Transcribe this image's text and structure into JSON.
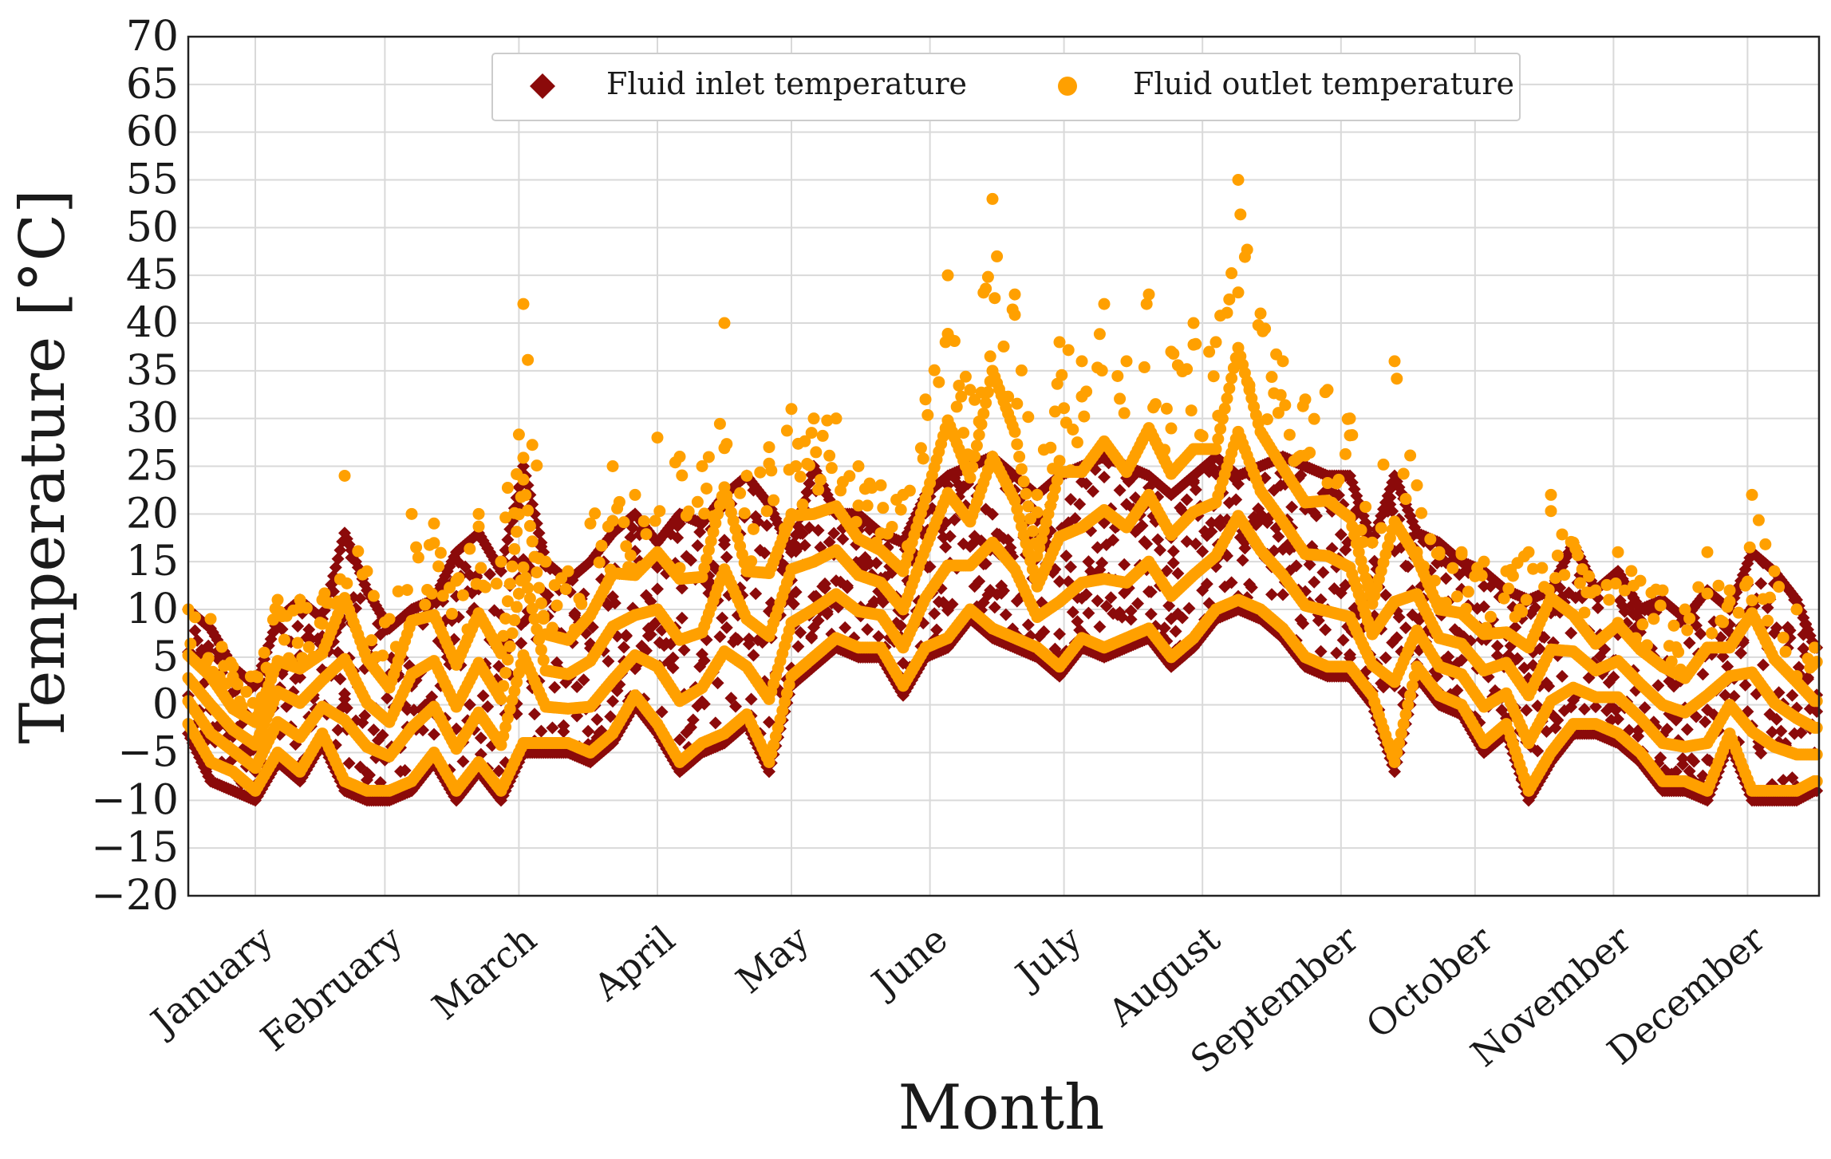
{
  "chart_data": {
    "type": "scatter",
    "title": "",
    "xlabel": "Month",
    "ylabel": "Temperature [°C]",
    "ylim": [
      -20,
      70
    ],
    "yticks": [
      -20,
      -15,
      -10,
      -5,
      0,
      5,
      10,
      15,
      20,
      25,
      30,
      35,
      40,
      45,
      50,
      55,
      60,
      65,
      70
    ],
    "xlim": [
      0,
      365
    ],
    "xunit": "day of year",
    "categories": [
      "January",
      "February",
      "March",
      "April",
      "May",
      "June",
      "July",
      "August",
      "September",
      "October",
      "November",
      "December"
    ],
    "category_positions": [
      15,
      44,
      74,
      105,
      135,
      166,
      196,
      227,
      258,
      288,
      319,
      349
    ],
    "grid": true,
    "legend": {
      "placement": "upper-center",
      "entries": [
        "Fluid inlet temperature",
        "Fluid outlet temperature"
      ]
    },
    "colors": {
      "inlet": "#8b0a0a",
      "outlet": "#ffa000",
      "grid": "#d9d9d9"
    },
    "series": [
      {
        "name": "Fluid inlet temperature",
        "marker": "diamond",
        "note": "daily envelope read from figure",
        "x": [
          0,
          5,
          10,
          15,
          20,
          25,
          30,
          35,
          40,
          45,
          50,
          55,
          60,
          65,
          70,
          75,
          80,
          85,
          90,
          95,
          100,
          105,
          110,
          115,
          120,
          125,
          130,
          135,
          140,
          145,
          150,
          155,
          160,
          165,
          170,
          175,
          180,
          185,
          190,
          195,
          200,
          205,
          210,
          215,
          220,
          225,
          230,
          235,
          240,
          245,
          250,
          255,
          260,
          265,
          270,
          275,
          280,
          285,
          290,
          295,
          300,
          305,
          310,
          315,
          320,
          325,
          330,
          335,
          340,
          345,
          350,
          355,
          360,
          364
        ],
        "min": [
          -3,
          -8,
          -9,
          -10,
          -6,
          -8,
          -4,
          -9,
          -10,
          -10,
          -9,
          -6,
          -10,
          -7,
          -10,
          -5,
          -5,
          -5,
          -6,
          -4,
          0,
          -3,
          -7,
          -5,
          -4,
          -2,
          -7,
          2,
          4,
          6,
          5,
          5,
          1,
          5,
          6,
          9,
          7,
          6,
          5,
          3,
          6,
          5,
          6,
          7,
          4,
          6,
          9,
          10,
          9,
          7,
          4,
          3,
          3,
          0,
          -7,
          3,
          0,
          -1,
          -5,
          -3,
          -10,
          -6,
          -3,
          -3,
          -4,
          -6,
          -9,
          -9,
          -10,
          -4,
          -10,
          -10,
          -10,
          -9
        ],
        "max": [
          10,
          8,
          4,
          2,
          9,
          11,
          9,
          18,
          12,
          8,
          10,
          11,
          16,
          18,
          14,
          25,
          15,
          13,
          15,
          18,
          20,
          17,
          20,
          19,
          22,
          24,
          21,
          16,
          25,
          20,
          20,
          18,
          17,
          22,
          24,
          25,
          26,
          24,
          22,
          24,
          25,
          26,
          25,
          24,
          22,
          24,
          26,
          24,
          25,
          26,
          25,
          24,
          24,
          17,
          24,
          18,
          17,
          15,
          14,
          12,
          11,
          12,
          17,
          12,
          14,
          10,
          11,
          9,
          12,
          10,
          16,
          14,
          11,
          6
        ]
      },
      {
        "name": "Fluid outlet temperature",
        "marker": "circle",
        "note": "daily envelope read from figure",
        "x": [
          0,
          5,
          10,
          15,
          20,
          25,
          30,
          35,
          40,
          45,
          50,
          55,
          60,
          65,
          70,
          75,
          80,
          85,
          90,
          95,
          100,
          105,
          110,
          115,
          120,
          125,
          130,
          135,
          140,
          145,
          150,
          155,
          160,
          165,
          170,
          175,
          180,
          185,
          190,
          195,
          200,
          205,
          210,
          215,
          220,
          225,
          230,
          235,
          240,
          245,
          250,
          255,
          260,
          265,
          270,
          275,
          280,
          285,
          290,
          295,
          300,
          305,
          310,
          315,
          320,
          325,
          330,
          335,
          340,
          345,
          350,
          355,
          360,
          364
        ],
        "min": [
          -2,
          -6,
          -7,
          -9,
          -5,
          -7,
          -3,
          -8,
          -9,
          -9,
          -8,
          -5,
          -9,
          -6,
          -9,
          -4,
          -4,
          -4,
          -5,
          -3,
          1,
          -2,
          -6,
          -4,
          -3,
          -1,
          -6,
          3,
          5,
          7,
          6,
          6,
          2,
          6,
          7,
          10,
          8,
          7,
          6,
          4,
          7,
          6,
          7,
          8,
          5,
          7,
          10,
          11,
          10,
          8,
          5,
          4,
          4,
          1,
          -6,
          4,
          1,
          0,
          -4,
          -2,
          -9,
          -5,
          -2,
          -2,
          -3,
          -5,
          -8,
          -8,
          -9,
          -3,
          -9,
          -9,
          -9,
          -8
        ],
        "max": [
          10,
          9,
          4,
          3,
          11,
          11,
          11,
          24,
          14,
          9,
          20,
          19,
          13,
          20,
          15,
          42,
          15,
          14,
          19,
          25,
          22,
          28,
          26,
          25,
          40,
          24,
          27,
          31,
          30,
          30,
          25,
          23,
          22,
          32,
          45,
          33,
          53,
          43,
          22,
          38,
          36,
          42,
          36,
          43,
          37,
          40,
          38,
          55,
          41,
          36,
          32,
          33,
          30,
          17,
          36,
          23,
          16,
          16,
          15,
          14,
          16,
          22,
          17,
          12,
          16,
          13,
          12,
          10,
          16,
          12,
          22,
          14,
          10,
          6
        ]
      }
    ]
  }
}
